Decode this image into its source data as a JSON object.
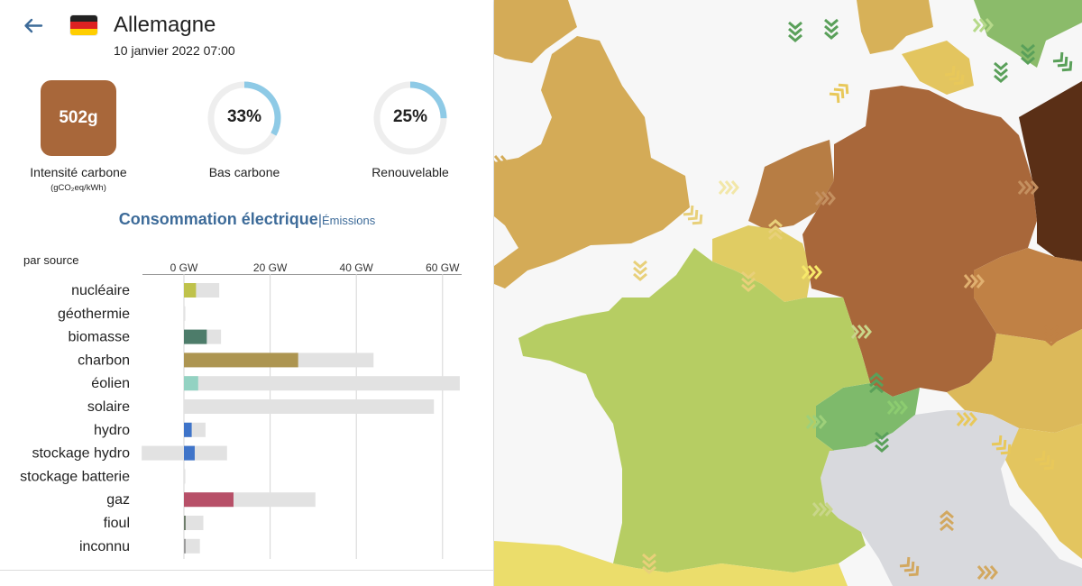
{
  "header": {
    "country": "Allemagne",
    "datetime": "10 janvier 2022 07:00"
  },
  "metrics": {
    "carbon_intensity": {
      "value": "502g",
      "label": "Intensité carbone",
      "unit": "(gCO₂eq/kWh)",
      "color": "#a8673a"
    },
    "low_carbon": {
      "value": "33%",
      "fraction": 0.33,
      "label": "Bas carbone"
    },
    "renewable": {
      "value": "25%",
      "fraction": 0.25,
      "label": "Renouvelable"
    },
    "ring_color": "#8ecae6"
  },
  "tabs": {
    "active": "Consommation électrique",
    "separator": "|",
    "other": "Émissions"
  },
  "chart_title": "par source",
  "chart_data": {
    "type": "bar",
    "xticks": [
      "0 GW",
      "20 GW",
      "40 GW",
      "60 GW"
    ],
    "xlim": [
      -10,
      65
    ],
    "categories": [
      "nucléaire",
      "géothermie",
      "biomasse",
      "charbon",
      "éolien",
      "solaire",
      "hydro",
      "stockage hydro",
      "stockage batterie",
      "gaz",
      "fioul",
      "inconnu"
    ],
    "series": [
      {
        "values": [
          2.8,
          0,
          5.3,
          26.5,
          3.3,
          0,
          1.8,
          2.5,
          0,
          11.5,
          0.4,
          0.4
        ]
      }
    ],
    "capacity": [
      8.2,
      0.1,
      8.6,
      44,
      64,
      58,
      5,
      10,
      0.3,
      30.5,
      4.5,
      3.7
    ],
    "capacity_min": [
      0,
      0,
      0,
      0,
      0,
      0,
      0,
      -9.8,
      0,
      0,
      0,
      0
    ],
    "colors": [
      "#bfc24b",
      "#aaaaaa",
      "#4d7c6a",
      "#ad9551",
      "#93d2c2",
      "#f5c243",
      "#3f74c9",
      "#3f74c9",
      "#777777",
      "#b75068",
      "#6d7c6a",
      "#9a9a9a"
    ],
    "capacity_color": "#e2e2e2"
  },
  "map": {
    "colors": {
      "france": "#b6cd63",
      "germany": "#a8673a",
      "uk": "#d4ab57",
      "switzerland": "#7eba6b",
      "italy_nodata": "#d8d9dd",
      "poland": "#5a2f16",
      "belgium": "#e0cc63",
      "netherlands": "#b77d44",
      "czech": "#c08145",
      "austria": "#dcb95a",
      "denmark": "#d7b158",
      "sweden": "#8bbb6a"
    }
  }
}
